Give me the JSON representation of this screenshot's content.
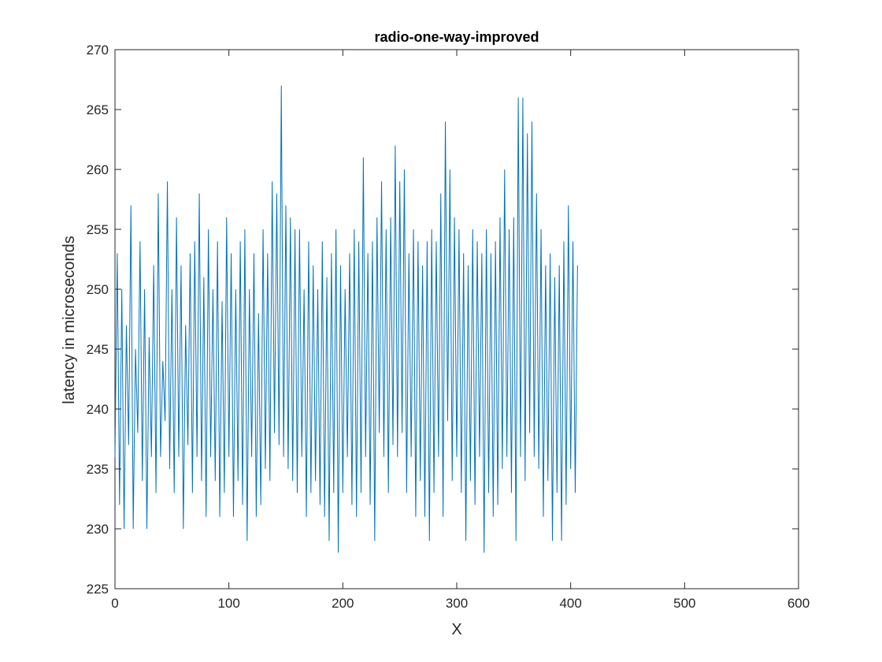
{
  "chart_data": {
    "type": "line",
    "title": "radio-one-way-improved",
    "xlabel": "X",
    "ylabel": "latency in microseconds",
    "xlim": [
      0,
      600
    ],
    "ylim": [
      225,
      270
    ],
    "xticks": [
      0,
      100,
      200,
      300,
      400,
      500,
      600
    ],
    "yticks": [
      225,
      230,
      235,
      240,
      245,
      250,
      255,
      260,
      265,
      270
    ],
    "grid": false,
    "box": true,
    "series": [
      {
        "color": "#0072BD",
        "x_start": 0,
        "x_step": 2,
        "values": [
          236,
          253,
          232,
          250,
          230,
          247,
          237,
          257,
          230,
          245,
          238,
          254,
          234,
          250,
          230,
          246,
          236,
          252,
          233,
          258,
          236,
          244,
          239,
          259,
          235,
          250,
          233,
          256,
          236,
          252,
          230,
          247,
          237,
          253,
          233,
          254,
          236,
          258,
          234,
          251,
          231,
          255,
          236,
          250,
          234,
          254,
          231,
          249,
          233,
          256,
          236,
          253,
          231,
          250,
          234,
          254,
          232,
          255,
          229,
          250,
          236,
          253,
          231,
          248,
          232,
          255,
          235,
          253,
          234,
          259,
          238,
          258,
          237,
          267,
          236,
          257,
          235,
          256,
          234,
          255,
          233,
          255,
          236,
          250,
          231,
          254,
          233,
          252,
          234,
          250,
          232,
          254,
          231,
          251,
          229,
          253,
          233,
          255,
          228,
          252,
          233,
          250,
          236,
          253,
          232,
          255,
          231,
          254,
          233,
          261,
          236,
          253,
          232,
          254,
          229,
          256,
          238,
          259,
          236,
          255,
          233,
          256,
          237,
          262,
          236,
          259,
          238,
          260,
          233,
          253,
          236,
          255,
          231,
          254,
          234,
          252,
          231,
          254,
          229,
          255,
          233,
          254,
          236,
          258,
          231,
          264,
          239,
          260,
          234,
          256,
          236,
          255,
          233,
          253,
          229,
          252,
          234,
          255,
          232,
          254,
          236,
          253,
          228,
          255,
          233,
          253,
          231,
          254,
          232,
          256,
          235,
          260,
          236,
          255,
          233,
          256,
          229,
          266,
          236,
          266,
          234,
          263,
          238,
          264,
          236,
          258,
          235,
          255,
          231,
          252,
          234,
          253,
          229,
          251,
          233,
          252,
          229,
          254,
          232,
          257,
          235,
          254,
          233,
          252
        ]
      }
    ]
  }
}
